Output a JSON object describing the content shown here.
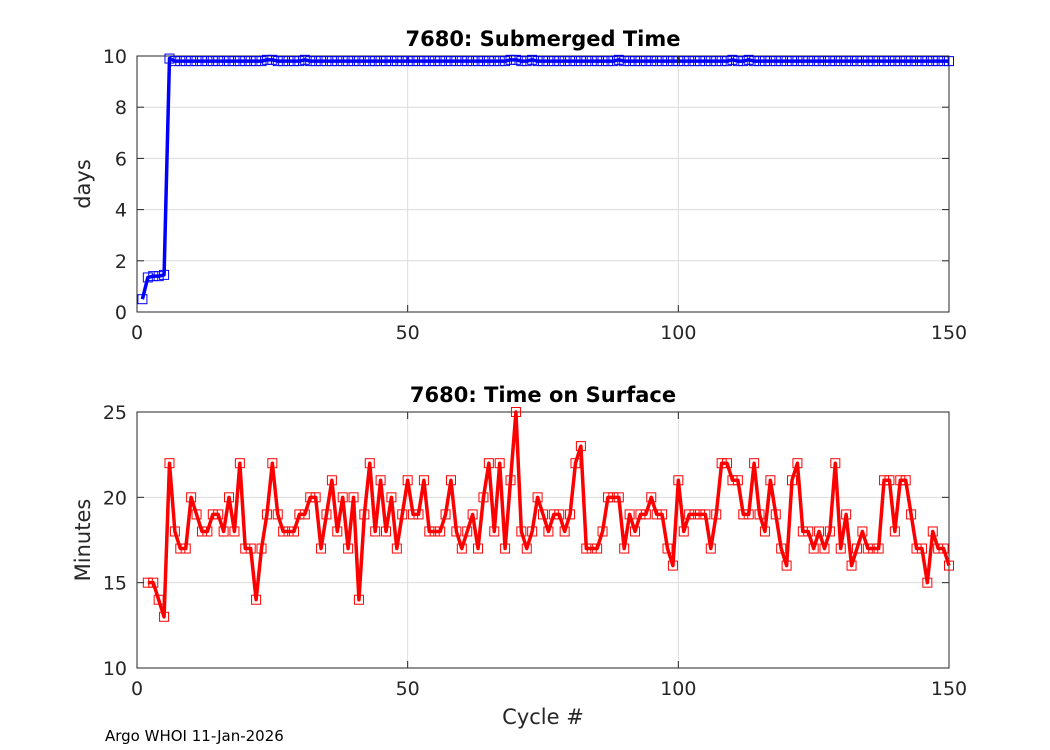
{
  "footer_text": "Argo WHOI 11-Jan-2026",
  "chart_data": [
    {
      "type": "line",
      "title": "7680: Submerged Time",
      "xlabel": "",
      "ylabel": "days",
      "xlim": [
        0,
        150
      ],
      "ylim": [
        0,
        10
      ],
      "xticks": [
        0,
        50,
        100,
        150
      ],
      "yticks": [
        0,
        2,
        4,
        6,
        8,
        10
      ],
      "grid": true,
      "color": "#0000ff",
      "marker": "square",
      "series": [
        {
          "name": "Submerged Time",
          "x": [
            1,
            2,
            3,
            4,
            5,
            6,
            7,
            8,
            9,
            10,
            11,
            12,
            13,
            14,
            15,
            16,
            17,
            18,
            19,
            20,
            21,
            22,
            23,
            24,
            25,
            26,
            27,
            28,
            29,
            30,
            31,
            32,
            33,
            34,
            35,
            36,
            37,
            38,
            39,
            40,
            41,
            42,
            43,
            44,
            45,
            46,
            47,
            48,
            49,
            50,
            51,
            52,
            53,
            54,
            55,
            56,
            57,
            58,
            59,
            60,
            61,
            62,
            63,
            64,
            65,
            66,
            67,
            68,
            69,
            70,
            71,
            72,
            73,
            74,
            75,
            76,
            77,
            78,
            79,
            80,
            81,
            82,
            83,
            84,
            85,
            86,
            87,
            88,
            89,
            90,
            91,
            92,
            93,
            94,
            95,
            96,
            97,
            98,
            99,
            100,
            101,
            102,
            103,
            104,
            105,
            106,
            107,
            108,
            109,
            110,
            111,
            112,
            113,
            114,
            115,
            116,
            117,
            118,
            119,
            120,
            121,
            122,
            123,
            124,
            125,
            126,
            127,
            128,
            129,
            130,
            131,
            132,
            133,
            134,
            135,
            136,
            137,
            138,
            139,
            140,
            141,
            142,
            143,
            144,
            145,
            146,
            147,
            148,
            149,
            150
          ],
          "y": [
            0.5,
            1.35,
            1.4,
            1.4,
            1.45,
            9.9,
            9.8,
            9.8,
            9.8,
            9.8,
            9.8,
            9.8,
            9.8,
            9.8,
            9.8,
            9.8,
            9.8,
            9.8,
            9.8,
            9.8,
            9.8,
            9.8,
            9.8,
            9.85,
            9.85,
            9.8,
            9.8,
            9.8,
            9.8,
            9.8,
            9.85,
            9.8,
            9.8,
            9.8,
            9.8,
            9.8,
            9.8,
            9.8,
            9.8,
            9.8,
            9.8,
            9.8,
            9.8,
            9.8,
            9.8,
            9.8,
            9.8,
            9.8,
            9.8,
            9.8,
            9.8,
            9.8,
            9.8,
            9.8,
            9.8,
            9.8,
            9.8,
            9.8,
            9.8,
            9.8,
            9.8,
            9.8,
            9.8,
            9.8,
            9.8,
            9.8,
            9.8,
            9.8,
            9.85,
            9.85,
            9.8,
            9.8,
            9.85,
            9.8,
            9.8,
            9.8,
            9.8,
            9.8,
            9.8,
            9.8,
            9.8,
            9.8,
            9.8,
            9.8,
            9.8,
            9.8,
            9.8,
            9.8,
            9.85,
            9.8,
            9.8,
            9.8,
            9.8,
            9.8,
            9.8,
            9.8,
            9.8,
            9.8,
            9.8,
            9.8,
            9.8,
            9.8,
            9.8,
            9.8,
            9.8,
            9.8,
            9.8,
            9.8,
            9.8,
            9.85,
            9.8,
            9.8,
            9.85,
            9.8,
            9.8,
            9.8,
            9.8,
            9.8,
            9.8,
            9.8,
            9.8,
            9.8,
            9.8,
            9.8,
            9.8,
            9.8,
            9.8,
            9.8,
            9.8,
            9.8,
            9.8,
            9.8,
            9.8,
            9.8,
            9.8,
            9.8,
            9.8,
            9.8,
            9.8,
            9.8,
            9.8,
            9.8,
            9.8,
            9.8,
            9.8,
            9.8,
            9.8,
            9.8,
            9.8,
            9.8
          ]
        }
      ]
    },
    {
      "type": "line",
      "title": "7680: Time on Surface",
      "xlabel": "Cycle #",
      "ylabel": "Minutes",
      "xlim": [
        0,
        150
      ],
      "ylim": [
        10,
        25
      ],
      "xticks": [
        0,
        50,
        100,
        150
      ],
      "yticks": [
        10,
        15,
        20,
        25
      ],
      "grid": true,
      "color": "#ff0000",
      "marker": "square",
      "series": [
        {
          "name": "Time on Surface",
          "x": [
            2,
            3,
            4,
            5,
            6,
            7,
            8,
            9,
            10,
            11,
            12,
            13,
            14,
            15,
            16,
            17,
            18,
            19,
            20,
            21,
            22,
            23,
            24,
            25,
            26,
            27,
            28,
            29,
            30,
            31,
            32,
            33,
            34,
            35,
            36,
            37,
            38,
            39,
            40,
            41,
            42,
            43,
            44,
            45,
            46,
            47,
            48,
            49,
            50,
            51,
            52,
            53,
            54,
            55,
            56,
            57,
            58,
            59,
            60,
            61,
            62,
            63,
            64,
            65,
            66,
            67,
            68,
            69,
            70,
            71,
            72,
            73,
            74,
            75,
            76,
            77,
            78,
            79,
            80,
            81,
            82,
            83,
            84,
            85,
            86,
            87,
            88,
            89,
            90,
            91,
            92,
            93,
            94,
            95,
            96,
            97,
            98,
            99,
            100,
            101,
            102,
            103,
            104,
            105,
            106,
            107,
            108,
            109,
            110,
            111,
            112,
            113,
            114,
            115,
            116,
            117,
            118,
            119,
            120,
            121,
            122,
            123,
            124,
            125,
            126,
            127,
            128,
            129,
            130,
            131,
            132,
            133,
            134,
            135,
            136,
            137,
            138,
            139,
            140,
            141,
            142,
            143,
            144,
            145,
            146,
            147,
            148,
            149,
            150
          ],
          "y": [
            15,
            15,
            14,
            13,
            22,
            18,
            17,
            17,
            20,
            19,
            18,
            18,
            19,
            19,
            18,
            20,
            18,
            22,
            17,
            17,
            14,
            17,
            19,
            22,
            19,
            18,
            18,
            18,
            19,
            19,
            20,
            20,
            17,
            19,
            21,
            18,
            20,
            17,
            20,
            14,
            19,
            22,
            18,
            21,
            18,
            20,
            17,
            19,
            21,
            19,
            19,
            21,
            18,
            18,
            18,
            19,
            21,
            18,
            17,
            18,
            19,
            17,
            20,
            22,
            18,
            22,
            17,
            21,
            25,
            18,
            17,
            18,
            20,
            19,
            18,
            19,
            19,
            18,
            19,
            22,
            23,
            17,
            17,
            17,
            18,
            20,
            20,
            20,
            17,
            19,
            18,
            19,
            19,
            20,
            19,
            19,
            17,
            16,
            21,
            18,
            19,
            19,
            19,
            19,
            17,
            19,
            22,
            22,
            21,
            21,
            19,
            19,
            22,
            19,
            18,
            21,
            19,
            17,
            16,
            21,
            22,
            18,
            18,
            17,
            18,
            17,
            18,
            22,
            17,
            19,
            16,
            17,
            18,
            17,
            17,
            17,
            21,
            21,
            18,
            21,
            21,
            19,
            17,
            17,
            15,
            18,
            17,
            17,
            16
          ]
        }
      ]
    }
  ]
}
